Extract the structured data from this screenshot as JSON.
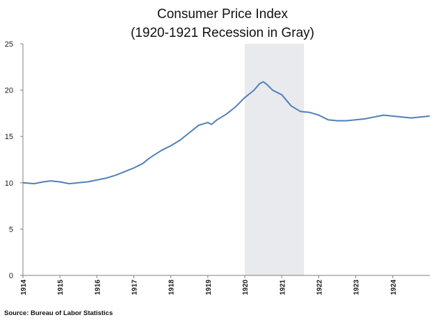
{
  "chart_data": {
    "type": "line",
    "title": "Consumer Price Index",
    "subtitle": "(1920-1921 Recession in Gray)",
    "xlabel": "",
    "ylabel": "",
    "xlim": [
      1914,
      1925
    ],
    "ylim": [
      0,
      25
    ],
    "y_ticks": [
      0,
      5,
      10,
      15,
      20,
      25
    ],
    "x_ticks": [
      "1914",
      "1915",
      "1916",
      "1917",
      "1918",
      "1919",
      "1920",
      "1921",
      "1922",
      "1923",
      "1924"
    ],
    "grid": false,
    "shaded_regions": [
      {
        "label": "1920-1921 Recession",
        "start": 1920.0,
        "end": 1921.6,
        "color": "#e9eaee"
      }
    ],
    "series": [
      {
        "name": "Consumer Price Index",
        "color": "#4f7fba",
        "x": [
          1914.0,
          1914.3,
          1914.55,
          1914.75,
          1915.0,
          1915.25,
          1915.5,
          1915.75,
          1916.0,
          1916.25,
          1916.5,
          1916.75,
          1917.0,
          1917.25,
          1917.4,
          1917.55,
          1917.75,
          1918.0,
          1918.25,
          1918.5,
          1918.75,
          1919.0,
          1919.1,
          1919.25,
          1919.5,
          1919.75,
          1920.0,
          1920.25,
          1920.4,
          1920.5,
          1920.6,
          1920.75,
          1921.0,
          1921.25,
          1921.5,
          1921.75,
          1922.0,
          1922.25,
          1922.5,
          1922.75,
          1923.0,
          1923.25,
          1923.5,
          1923.75,
          1924.0,
          1924.25,
          1924.5,
          1924.75,
          1925.0
        ],
        "values": [
          10.0,
          9.9,
          10.1,
          10.2,
          10.1,
          9.9,
          10.0,
          10.1,
          10.3,
          10.5,
          10.8,
          11.2,
          11.6,
          12.1,
          12.6,
          13.0,
          13.5,
          14.0,
          14.6,
          15.4,
          16.2,
          16.5,
          16.3,
          16.8,
          17.4,
          18.2,
          19.2,
          20.0,
          20.7,
          20.9,
          20.6,
          20.0,
          19.5,
          18.3,
          17.7,
          17.6,
          17.3,
          16.8,
          16.7,
          16.7,
          16.8,
          16.9,
          17.1,
          17.3,
          17.2,
          17.1,
          17.0,
          17.1,
          17.2
        ]
      }
    ]
  },
  "source": "Source: Bureau of Labor Statistics",
  "colors": {
    "axis": "#7f7f7f",
    "line": "#4f7fba",
    "shade": "#e9eaee"
  }
}
